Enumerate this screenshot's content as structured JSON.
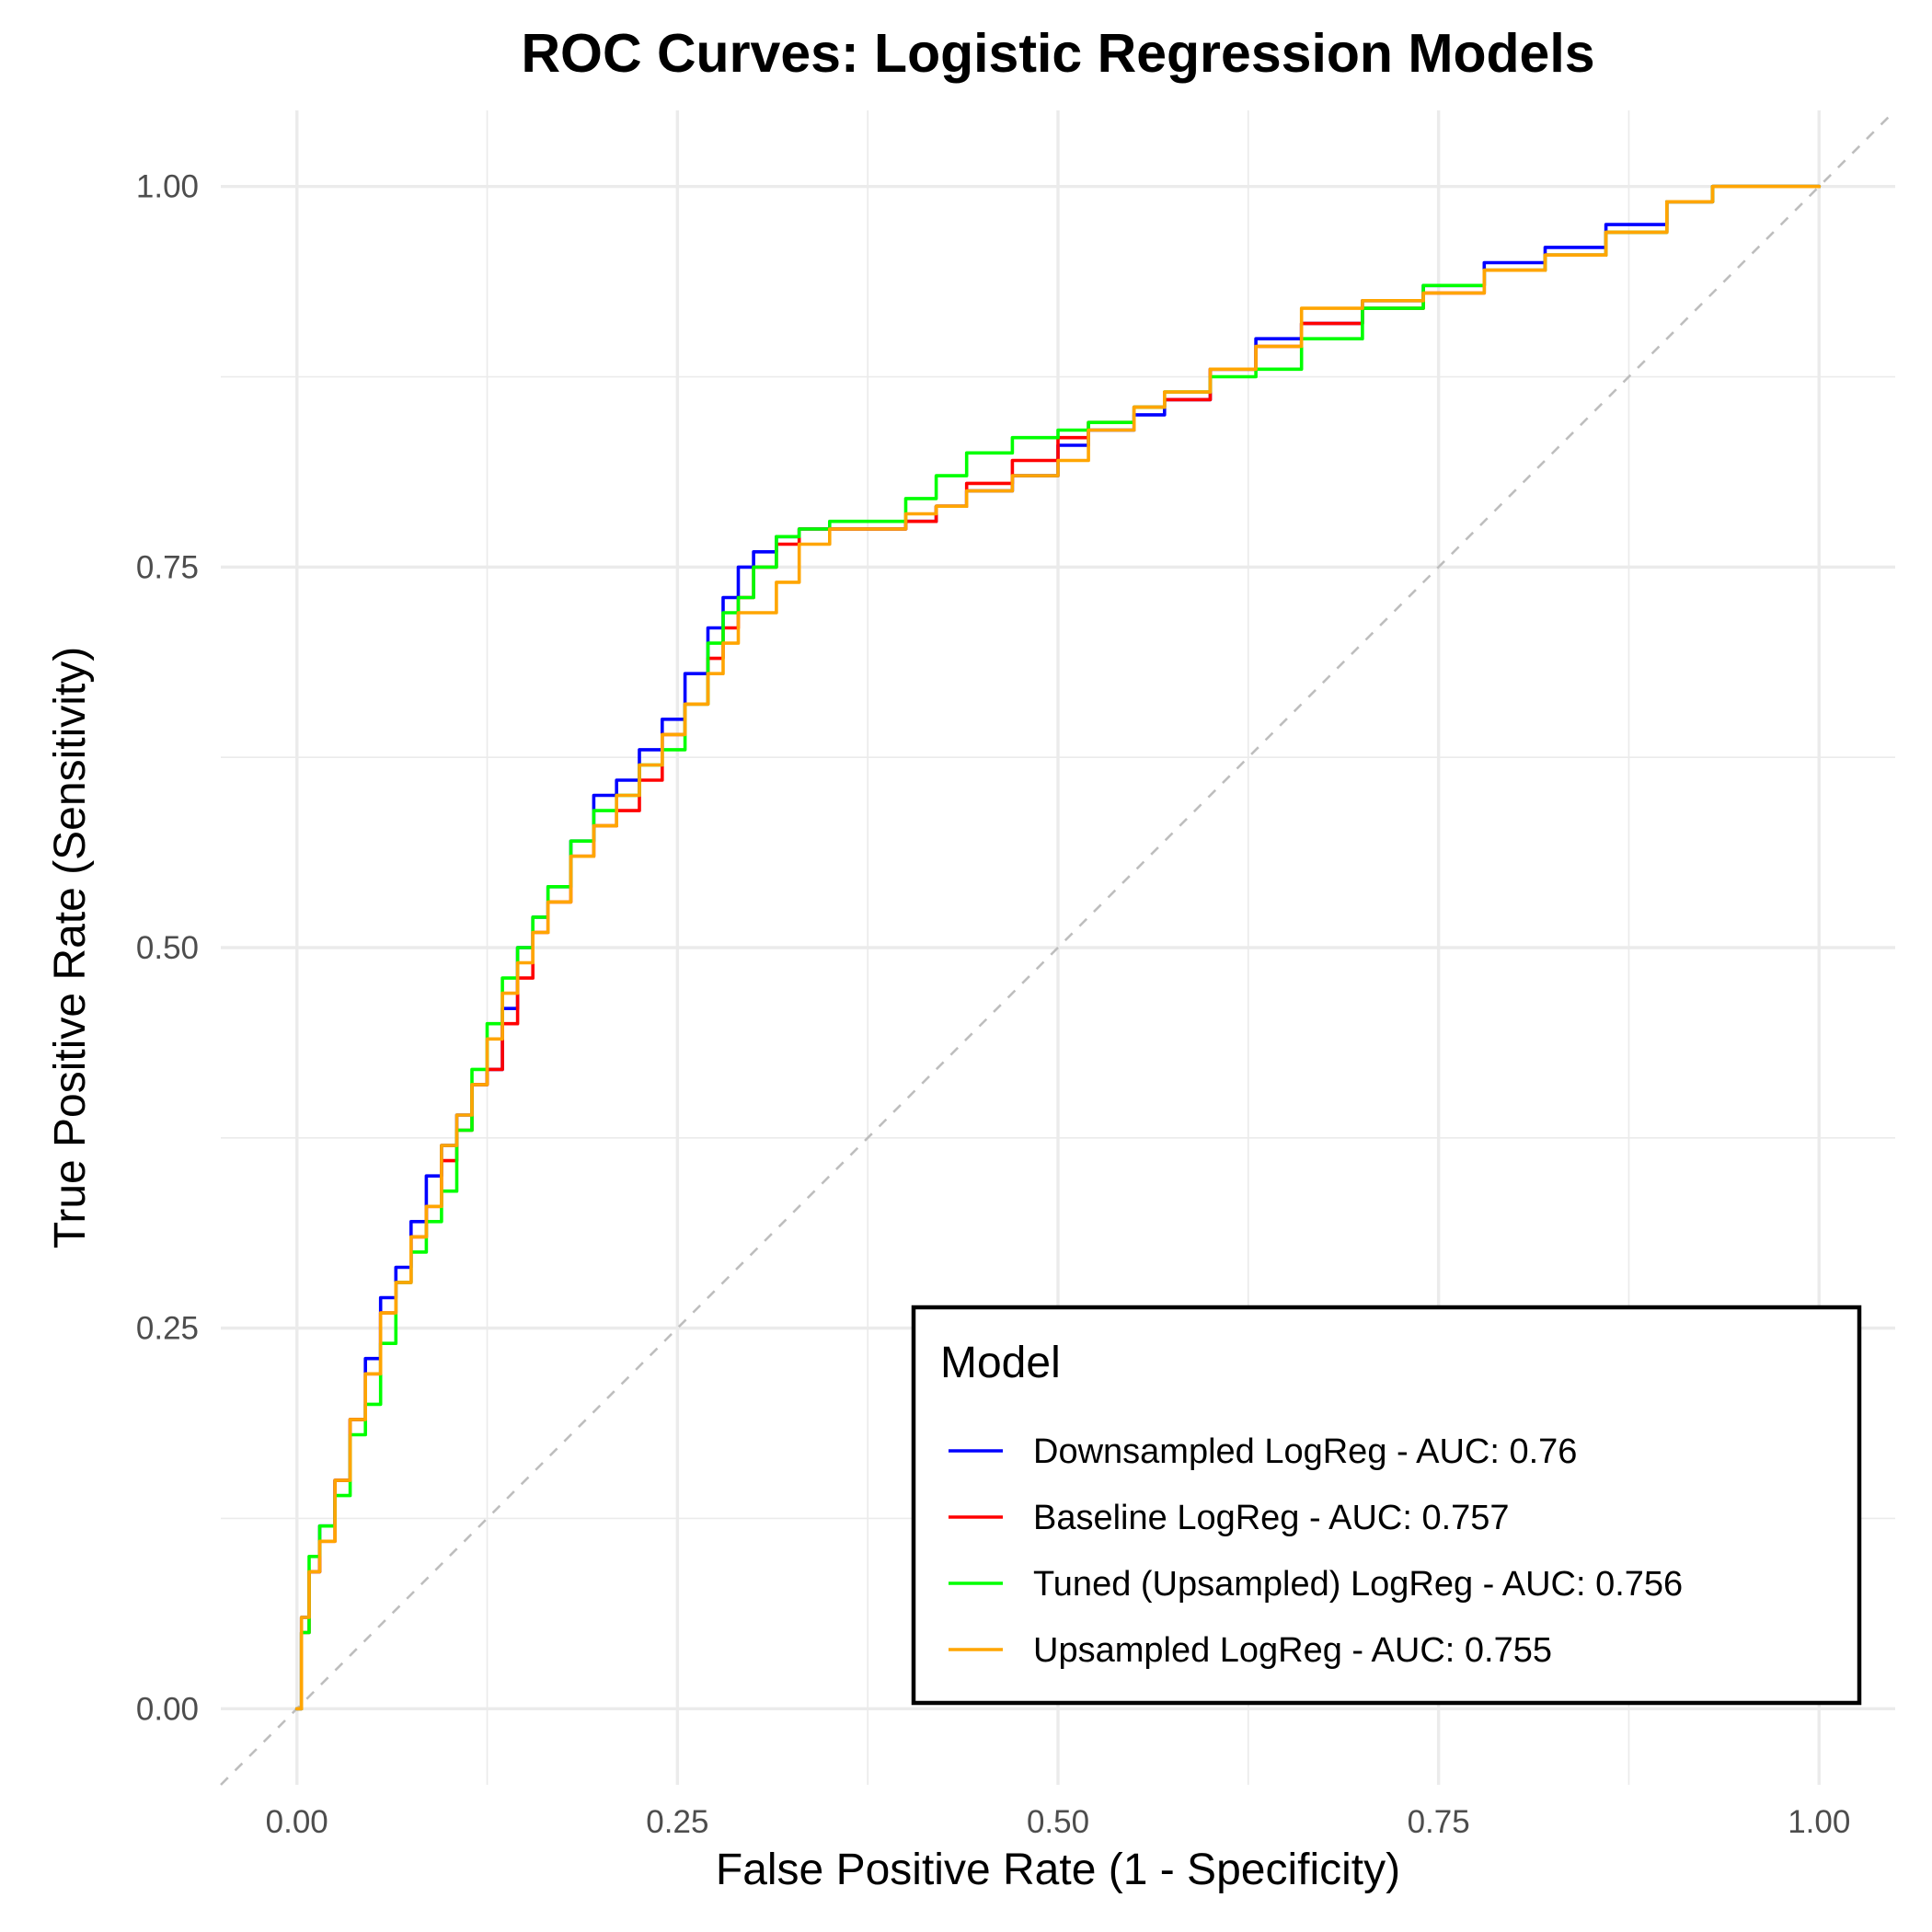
{
  "chart_data": {
    "type": "line",
    "title": "ROC Curves: Logistic Regression Models",
    "xlabel": "False Positive Rate (1 - Specificity)",
    "ylabel": "True Positive Rate (Sensitivity)",
    "xlim": [
      -0.05,
      1.05
    ],
    "ylim": [
      -0.05,
      1.05
    ],
    "grid": true,
    "x_ticks": [
      0,
      0.25,
      0.5,
      0.75,
      1
    ],
    "y_ticks": [
      0,
      0.25,
      0.5,
      0.75,
      1
    ],
    "x_tick_labels": [
      "0.00",
      "0.25",
      "0.50",
      "0.75",
      "1.00"
    ],
    "y_tick_labels": [
      "0.00",
      "0.25",
      "0.50",
      "0.75",
      "1.00"
    ],
    "reference_line": {
      "x": [
        -0.05,
        1.05
      ],
      "y": [
        -0.05,
        1.05
      ],
      "color": "#bebebe",
      "style": "dashed"
    },
    "legend": {
      "title": "Model",
      "position": "bottom-right"
    },
    "series": [
      {
        "name": "Downsampled LogReg - AUC: 0.76",
        "color": "#0000ff",
        "x": [
          0,
          0.003,
          0.008,
          0.015,
          0.025,
          0.035,
          0.045,
          0.055,
          0.065,
          0.075,
          0.085,
          0.095,
          0.105,
          0.115,
          0.125,
          0.135,
          0.145,
          0.155,
          0.165,
          0.18,
          0.195,
          0.21,
          0.225,
          0.24,
          0.255,
          0.27,
          0.28,
          0.29,
          0.3,
          0.315,
          0.33,
          0.35,
          0.37,
          0.4,
          0.42,
          0.44,
          0.47,
          0.5,
          0.52,
          0.55,
          0.57,
          0.6,
          0.63,
          0.66,
          0.7,
          0.74,
          0.78,
          0.82,
          0.86,
          0.9,
          0.93,
          0.96,
          1
        ],
        "y": [
          0,
          0.06,
          0.09,
          0.12,
          0.15,
          0.19,
          0.23,
          0.27,
          0.29,
          0.32,
          0.35,
          0.37,
          0.39,
          0.41,
          0.42,
          0.46,
          0.5,
          0.52,
          0.54,
          0.57,
          0.6,
          0.61,
          0.63,
          0.65,
          0.68,
          0.71,
          0.73,
          0.75,
          0.76,
          0.77,
          0.775,
          0.775,
          0.775,
          0.78,
          0.79,
          0.8,
          0.81,
          0.83,
          0.84,
          0.85,
          0.86,
          0.88,
          0.9,
          0.91,
          0.925,
          0.935,
          0.95,
          0.96,
          0.975,
          0.99,
          1,
          1,
          1
        ]
      },
      {
        "name": "Baseline LogReg - AUC: 0.757",
        "color": "#ff0000",
        "x": [
          0,
          0.003,
          0.008,
          0.015,
          0.025,
          0.035,
          0.045,
          0.055,
          0.065,
          0.075,
          0.085,
          0.095,
          0.105,
          0.115,
          0.125,
          0.135,
          0.145,
          0.155,
          0.165,
          0.18,
          0.195,
          0.21,
          0.225,
          0.24,
          0.255,
          0.27,
          0.28,
          0.29,
          0.3,
          0.315,
          0.33,
          0.35,
          0.37,
          0.4,
          0.42,
          0.44,
          0.47,
          0.5,
          0.52,
          0.55,
          0.57,
          0.6,
          0.63,
          0.66,
          0.7,
          0.74,
          0.78,
          0.82,
          0.86,
          0.9,
          0.93,
          0.96,
          1
        ],
        "y": [
          0,
          0.05,
          0.09,
          0.11,
          0.15,
          0.19,
          0.22,
          0.26,
          0.28,
          0.31,
          0.33,
          0.36,
          0.38,
          0.41,
          0.42,
          0.45,
          0.48,
          0.51,
          0.53,
          0.56,
          0.58,
          0.59,
          0.61,
          0.64,
          0.66,
          0.69,
          0.71,
          0.73,
          0.75,
          0.765,
          0.775,
          0.775,
          0.775,
          0.78,
          0.79,
          0.805,
          0.82,
          0.835,
          0.845,
          0.855,
          0.86,
          0.88,
          0.895,
          0.91,
          0.92,
          0.93,
          0.945,
          0.955,
          0.97,
          0.99,
          1,
          1,
          1
        ]
      },
      {
        "name": "Tuned (Upsampled) LogReg - AUC: 0.756",
        "color": "#00ff00",
        "x": [
          0,
          0.003,
          0.008,
          0.015,
          0.025,
          0.035,
          0.045,
          0.055,
          0.065,
          0.075,
          0.085,
          0.095,
          0.105,
          0.115,
          0.125,
          0.135,
          0.145,
          0.155,
          0.165,
          0.18,
          0.195,
          0.21,
          0.225,
          0.24,
          0.255,
          0.27,
          0.28,
          0.29,
          0.3,
          0.315,
          0.33,
          0.35,
          0.37,
          0.4,
          0.42,
          0.44,
          0.47,
          0.5,
          0.52,
          0.55,
          0.57,
          0.6,
          0.63,
          0.66,
          0.7,
          0.74,
          0.78,
          0.82,
          0.86,
          0.9,
          0.93,
          0.96,
          1
        ],
        "y": [
          0,
          0.05,
          0.1,
          0.12,
          0.14,
          0.18,
          0.2,
          0.24,
          0.28,
          0.3,
          0.32,
          0.34,
          0.38,
          0.42,
          0.45,
          0.48,
          0.5,
          0.52,
          0.54,
          0.57,
          0.59,
          0.6,
          0.62,
          0.63,
          0.66,
          0.7,
          0.72,
          0.73,
          0.75,
          0.77,
          0.775,
          0.78,
          0.78,
          0.795,
          0.81,
          0.825,
          0.835,
          0.84,
          0.845,
          0.855,
          0.865,
          0.875,
          0.88,
          0.9,
          0.92,
          0.935,
          0.945,
          0.955,
          0.97,
          0.99,
          1,
          1,
          1
        ]
      },
      {
        "name": "Upsampled LogReg - AUC: 0.755",
        "color": "#ffa500",
        "x": [
          0,
          0.003,
          0.008,
          0.015,
          0.025,
          0.035,
          0.045,
          0.055,
          0.065,
          0.075,
          0.085,
          0.095,
          0.105,
          0.115,
          0.125,
          0.135,
          0.145,
          0.155,
          0.165,
          0.18,
          0.195,
          0.21,
          0.225,
          0.24,
          0.255,
          0.27,
          0.28,
          0.29,
          0.3,
          0.315,
          0.33,
          0.35,
          0.37,
          0.4,
          0.42,
          0.44,
          0.47,
          0.5,
          0.52,
          0.55,
          0.57,
          0.6,
          0.63,
          0.66,
          0.7,
          0.74,
          0.78,
          0.82,
          0.86,
          0.9,
          0.93,
          0.96,
          1
        ],
        "y": [
          0,
          0.06,
          0.09,
          0.11,
          0.15,
          0.19,
          0.22,
          0.26,
          0.28,
          0.31,
          0.33,
          0.37,
          0.39,
          0.41,
          0.44,
          0.47,
          0.49,
          0.51,
          0.53,
          0.56,
          0.58,
          0.6,
          0.62,
          0.64,
          0.66,
          0.68,
          0.7,
          0.72,
          0.72,
          0.74,
          0.765,
          0.775,
          0.775,
          0.785,
          0.79,
          0.8,
          0.81,
          0.82,
          0.84,
          0.855,
          0.865,
          0.88,
          0.895,
          0.92,
          0.925,
          0.93,
          0.945,
          0.955,
          0.97,
          0.99,
          1,
          1,
          1
        ]
      }
    ]
  }
}
